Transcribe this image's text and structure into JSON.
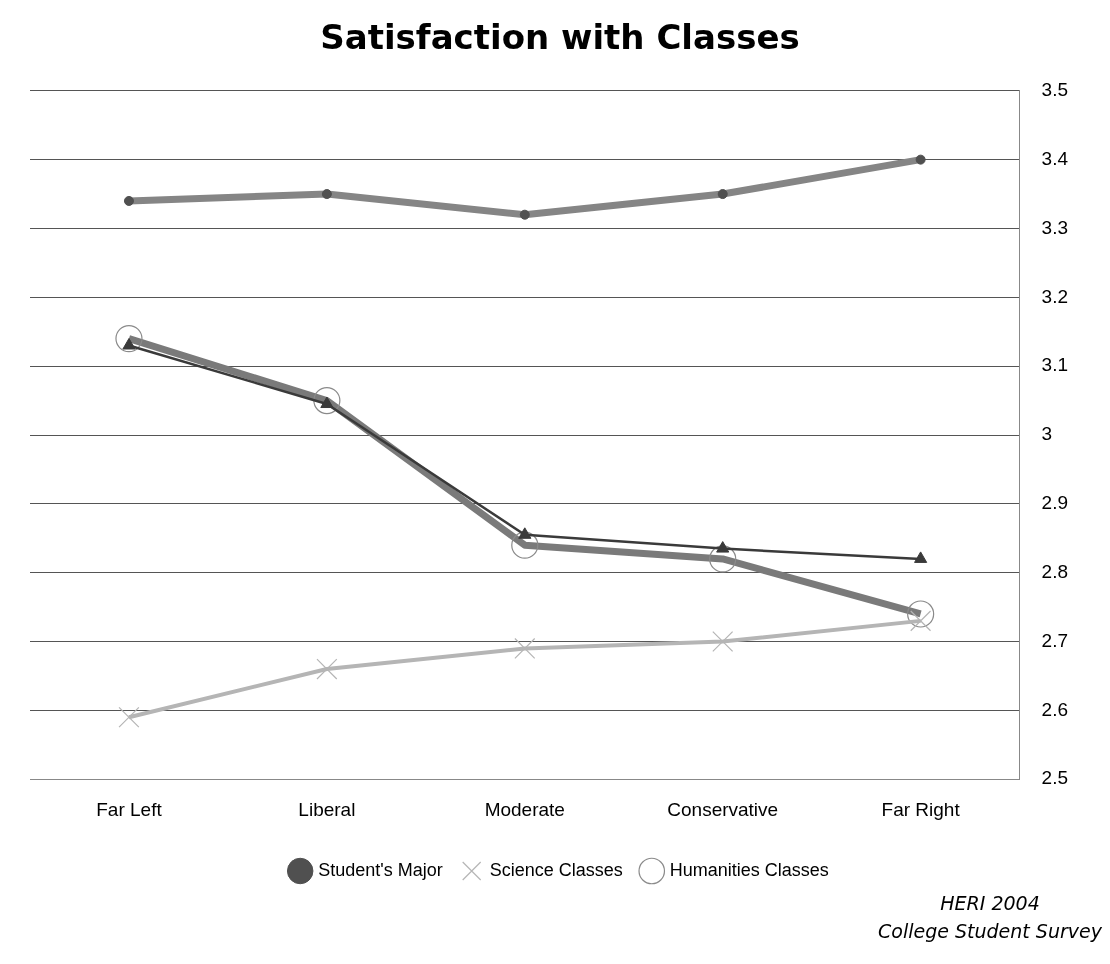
{
  "chart_data": {
    "type": "line",
    "title": "Satisfaction with Classes",
    "categories": [
      "Far Left",
      "Liberal",
      "Moderate",
      "Conservative",
      "Far Right"
    ],
    "series": [
      {
        "name": "Student's Major",
        "color": "#858585",
        "values": [
          3.34,
          3.35,
          3.32,
          3.35,
          3.4
        ],
        "marker": "circle"
      },
      {
        "name": "Science Classes",
        "color": "#b5b5b5",
        "values": [
          2.59,
          2.66,
          2.69,
          2.7,
          2.73
        ],
        "marker": "cross"
      },
      {
        "name": "Humanities Classes",
        "color": "#7a7a7a",
        "values": [
          3.14,
          3.05,
          2.84,
          2.82,
          2.74
        ],
        "marker": "circle"
      },
      {
        "color": "#3a3a3a",
        "values": [
          3.13,
          3.045,
          2.855,
          2.835,
          2.82
        ],
        "marker": "triangle"
      }
    ],
    "ylim": [
      2.5,
      3.5
    ],
    "yticks": [
      2.5,
      2.6,
      2.7,
      2.8,
      2.9,
      3,
      3.1,
      3.2,
      3.3,
      3.4,
      3.5
    ],
    "grid": "y",
    "legend": "bottom",
    "line_style": "solid",
    "annotations": [
      "HERI 2004",
      "College Student Survey"
    ]
  }
}
